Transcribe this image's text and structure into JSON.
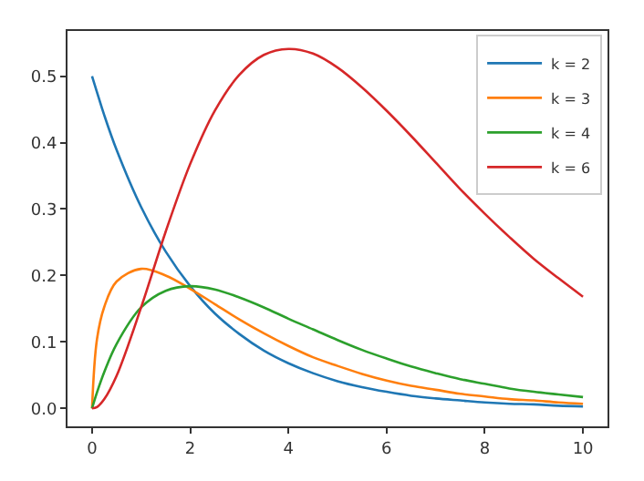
{
  "chart_data": {
    "type": "line",
    "x": [
      0,
      0.1,
      0.25,
      0.5,
      1,
      1.5,
      2,
      2.5,
      3,
      3.5,
      4,
      4.5,
      5,
      5.5,
      6,
      6.5,
      7,
      7.5,
      8,
      8.5,
      9,
      9.5,
      10
    ],
    "series": [
      {
        "name": "k = 2",
        "color": "#1f77b4",
        "values": [
          0.5,
          0.476,
          0.441,
          0.389,
          0.303,
          0.236,
          0.184,
          0.143,
          0.112,
          0.087,
          0.068,
          0.053,
          0.041,
          0.032,
          0.025,
          0.019,
          0.015,
          0.012,
          0.009,
          0.007,
          0.006,
          0.004,
          0.003
        ]
      },
      {
        "name": "k = 3",
        "color": "#ff7f0e",
        "values": [
          0,
          0.104,
          0.153,
          0.191,
          0.21,
          0.2,
          0.18,
          0.157,
          0.134,
          0.113,
          0.094,
          0.077,
          0.064,
          0.052,
          0.042,
          0.034,
          0.028,
          0.022,
          0.018,
          0.014,
          0.012,
          0.009,
          0.007
        ]
      },
      {
        "name": "k = 4",
        "color": "#2ca02c",
        "values": [
          0,
          0.024,
          0.055,
          0.097,
          0.152,
          0.177,
          0.184,
          0.179,
          0.167,
          0.152,
          0.135,
          0.119,
          0.103,
          0.088,
          0.075,
          0.063,
          0.053,
          0.044,
          0.037,
          0.03,
          0.025,
          0.021,
          0.017
        ]
      },
      {
        "name": "k = 6",
        "color": "#d62728",
        "values": [
          0,
          0.002,
          0.014,
          0.049,
          0.152,
          0.266,
          0.368,
          0.448,
          0.502,
          0.532,
          0.541,
          0.534,
          0.513,
          0.483,
          0.448,
          0.41,
          0.37,
          0.33,
          0.293,
          0.258,
          0.225,
          0.196,
          0.168
        ]
      }
    ],
    "xlim": [
      -0.5,
      10.5
    ],
    "xticks": [
      0,
      2,
      4,
      6,
      8,
      10
    ],
    "ylim": [
      -0.027,
      0.568
    ],
    "yticks": [
      {
        "value": 0,
        "label": "0.0"
      },
      {
        "value": 0.1,
        "label": "0.1"
      },
      {
        "value": 0.2,
        "label": "0.2"
      },
      {
        "value": 0.3,
        "label": "0.3"
      },
      {
        "value": 0.4,
        "label": "0.4"
      },
      {
        "value": 0.5,
        "label": "0.5"
      }
    ],
    "legend": "top right",
    "marker": "none",
    "line_style": "solid"
  }
}
